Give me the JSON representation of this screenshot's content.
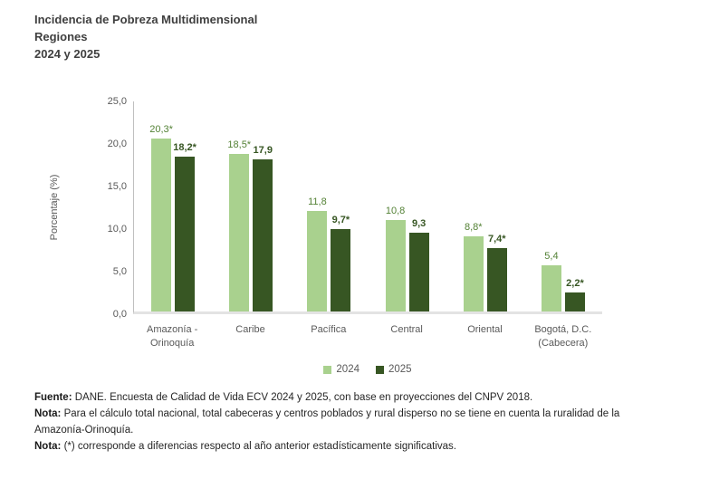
{
  "title": {
    "line1": "Incidencia de Pobreza Multidimensional",
    "line2": "Regiones",
    "line3": "2024 y 2025"
  },
  "chart_data": {
    "type": "bar",
    "title": "Incidencia de Pobreza Multidimensional — Regiones — 2024 y 2025",
    "ylabel": "Porcentaje (%)",
    "xlabel": "",
    "ylim": [
      0,
      25
    ],
    "grid": false,
    "legend_position": "bottom",
    "yticks": [
      {
        "value": 0,
        "label": "0,0"
      },
      {
        "value": 5,
        "label": "5,0"
      },
      {
        "value": 10,
        "label": "10,0"
      },
      {
        "value": 15,
        "label": "15,0"
      },
      {
        "value": 20,
        "label": "20,0"
      },
      {
        "value": 25,
        "label": "25,0"
      }
    ],
    "categories": [
      "Amazonía -\nOrinoquía",
      "Caribe",
      "Pacífica",
      "Central",
      "Oriental",
      "Bogotá, D.C.\n(Cabecera)"
    ],
    "series": [
      {
        "name": "2024",
        "color": "#a9d18e",
        "label_color": "#538135",
        "label_bold": false,
        "values": [
          20.3,
          18.5,
          11.8,
          10.8,
          8.8,
          5.4
        ],
        "labels": [
          "20,3*",
          "18,5*",
          "11,8",
          "10,8",
          "8,8*",
          "5,4"
        ]
      },
      {
        "name": "2025",
        "color": "#375623",
        "label_color": "#375623",
        "label_bold": true,
        "values": [
          18.2,
          17.9,
          9.7,
          9.3,
          7.4,
          2.2
        ],
        "labels": [
          "18,2*",
          "17,9",
          "9,7*",
          "9,3",
          "7,4*",
          "2,2*"
        ]
      }
    ]
  },
  "footer": {
    "notes": [
      {
        "prefix": "Fuente:",
        "text": " DANE. Encuesta de Calidad de Vida ECV 2024 y 2025, con base en proyecciones del CNPV 2018."
      },
      {
        "prefix": "Nota:",
        "text": " Para el cálculo total nacional, total cabeceras y centros poblados y rural disperso no se tiene en cuenta la ruralidad de la Amazonía-Orinoquía."
      },
      {
        "prefix": "Nota:",
        "text": " (*) corresponde a diferencias respecto al año anterior estadísticamente significativas."
      }
    ]
  },
  "colors": {
    "series_2024": "#a9d18e",
    "series_2025": "#375623",
    "label_2024": "#538135",
    "label_2025": "#375623",
    "axis_text": "#595959",
    "title_text": "#3f3f3f",
    "axis_line": "#bfbfbf",
    "baseline": "#e3e3e3"
  }
}
